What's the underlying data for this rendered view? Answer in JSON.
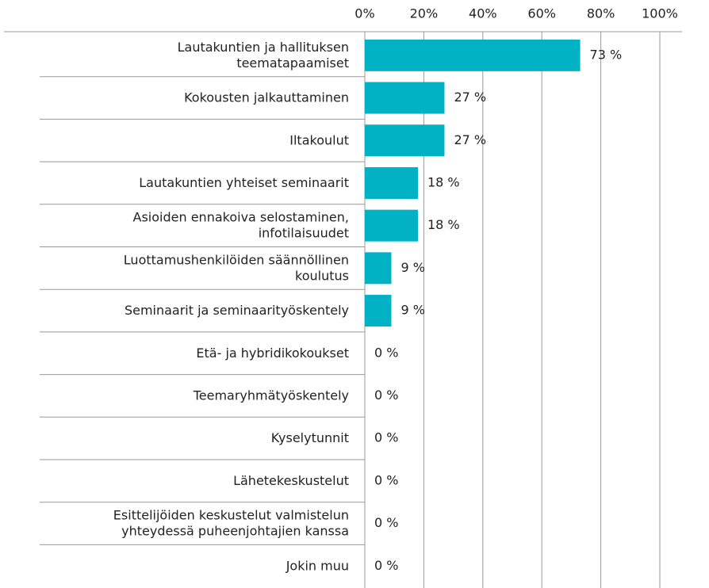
{
  "chart_data": {
    "type": "bar",
    "orientation": "horizontal",
    "categories": [
      "Lautakuntien ja hallituksen\nteematapaamiset",
      "Kokousten jalkauttaminen",
      "Iltakoulut",
      "Lautakuntien yhteiset seminaarit",
      "Asioiden ennakoiva selostaminen,\ninfotilaisuudet",
      "Luottamushenkilöiden säännöllinen\nkoulutus",
      "Seminaarit ja seminaarityöskentely",
      "Etä- ja hybridikokoukset",
      "Teemaryhmätyöskentely",
      "Kyselytunnit",
      "Lähetekeskustelut",
      "Esittelijöiden keskustelut valmistelun\nyhteydessä puheenjohtajien kanssa",
      "Jokin muu"
    ],
    "values": [
      73,
      27,
      27,
      18,
      18,
      9,
      9,
      0,
      0,
      0,
      0,
      0,
      0
    ],
    "value_labels": [
      "73 %",
      "27 %",
      "27 %",
      "18 %",
      "18 %",
      "9 %",
      "9 %",
      "0 %",
      "0 %",
      "0 %",
      "0 %",
      "0 %",
      "0 %"
    ],
    "color": "#00b2c3",
    "xlim": [
      0,
      100
    ],
    "xticks": [
      {
        "value": 0,
        "label": "0%"
      },
      {
        "value": 20,
        "label": "20%"
      },
      {
        "value": 40,
        "label": "40%"
      },
      {
        "value": 60,
        "label": "60%"
      },
      {
        "value": 80,
        "label": "80%"
      },
      {
        "value": 100,
        "label": "100%"
      }
    ],
    "grid": true
  }
}
